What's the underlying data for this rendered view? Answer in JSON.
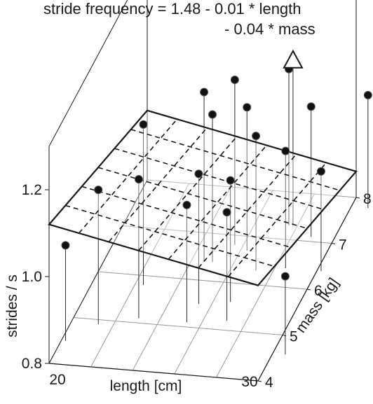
{
  "chart_data": {
    "type": "scatter",
    "title_lines": [
      "stride frequency = 1.48 - 0.01 * length",
      "- 0.04 * mass"
    ],
    "xlabel": "length [cm]",
    "ylabel": "mass [kg]",
    "zlabel": "strides / s",
    "x_ticks": [
      "20",
      "30"
    ],
    "y_ticks": [
      "4",
      "5",
      "6",
      "7",
      "8"
    ],
    "z_ticks": [
      "0.8",
      "1.0",
      "1.2"
    ],
    "xlim": [
      20,
      30
    ],
    "ylim": [
      4,
      8
    ],
    "zlim": [
      0.8,
      1.3
    ],
    "regression_plane": {
      "intercept": 1.48,
      "coef_length": -0.01,
      "coef_mass": -0.04
    },
    "points": [
      {
        "length": 20.2,
        "mass": 4.5,
        "strides": 1.02
      },
      {
        "length": 21.3,
        "mass": 4.9,
        "strides": 1.11
      },
      {
        "length": 22.4,
        "mass": 5.8,
        "strides": 1.17
      },
      {
        "length": 23.0,
        "mass": 5.1,
        "strides": 1.12
      },
      {
        "length": 24.6,
        "mass": 6.4,
        "strides": 1.19
      },
      {
        "length": 25.0,
        "mass": 6.4,
        "strides": 1.14
      },
      {
        "length": 25.3,
        "mass": 5.1,
        "strides": 1.07
      },
      {
        "length": 25.4,
        "mass": 5.5,
        "strides": 1.1
      },
      {
        "length": 25.6,
        "mass": 6.8,
        "strides": 1.18
      },
      {
        "length": 26.3,
        "mass": 6.7,
        "strides": 1.13
      },
      {
        "length": 26.8,
        "mass": 5.6,
        "strides": 1.08
      },
      {
        "length": 27.1,
        "mass": 5.2,
        "strides": 1.05
      },
      {
        "length": 27.2,
        "mass": 6.3,
        "strides": 1.11
      },
      {
        "length": 27.6,
        "mass": 7.3,
        "strides": 1.16
      },
      {
        "length": 28.5,
        "mass": 6.4,
        "strides": 1.07
      },
      {
        "length": 28.9,
        "mass": 7.1,
        "strides": 1.1
      },
      {
        "length": 30.2,
        "mass": 6.4,
        "strides": 1.03
      },
      {
        "length": 30.6,
        "mass": 4.6,
        "strides": 0.98
      },
      {
        "length": 30.8,
        "mass": 7.8,
        "strides": 1.06
      }
    ],
    "highlight_point": {
      "length": 27.8,
      "mass": 7.3,
      "strides": 1.18,
      "marker": "triangle"
    },
    "grid": true
  }
}
